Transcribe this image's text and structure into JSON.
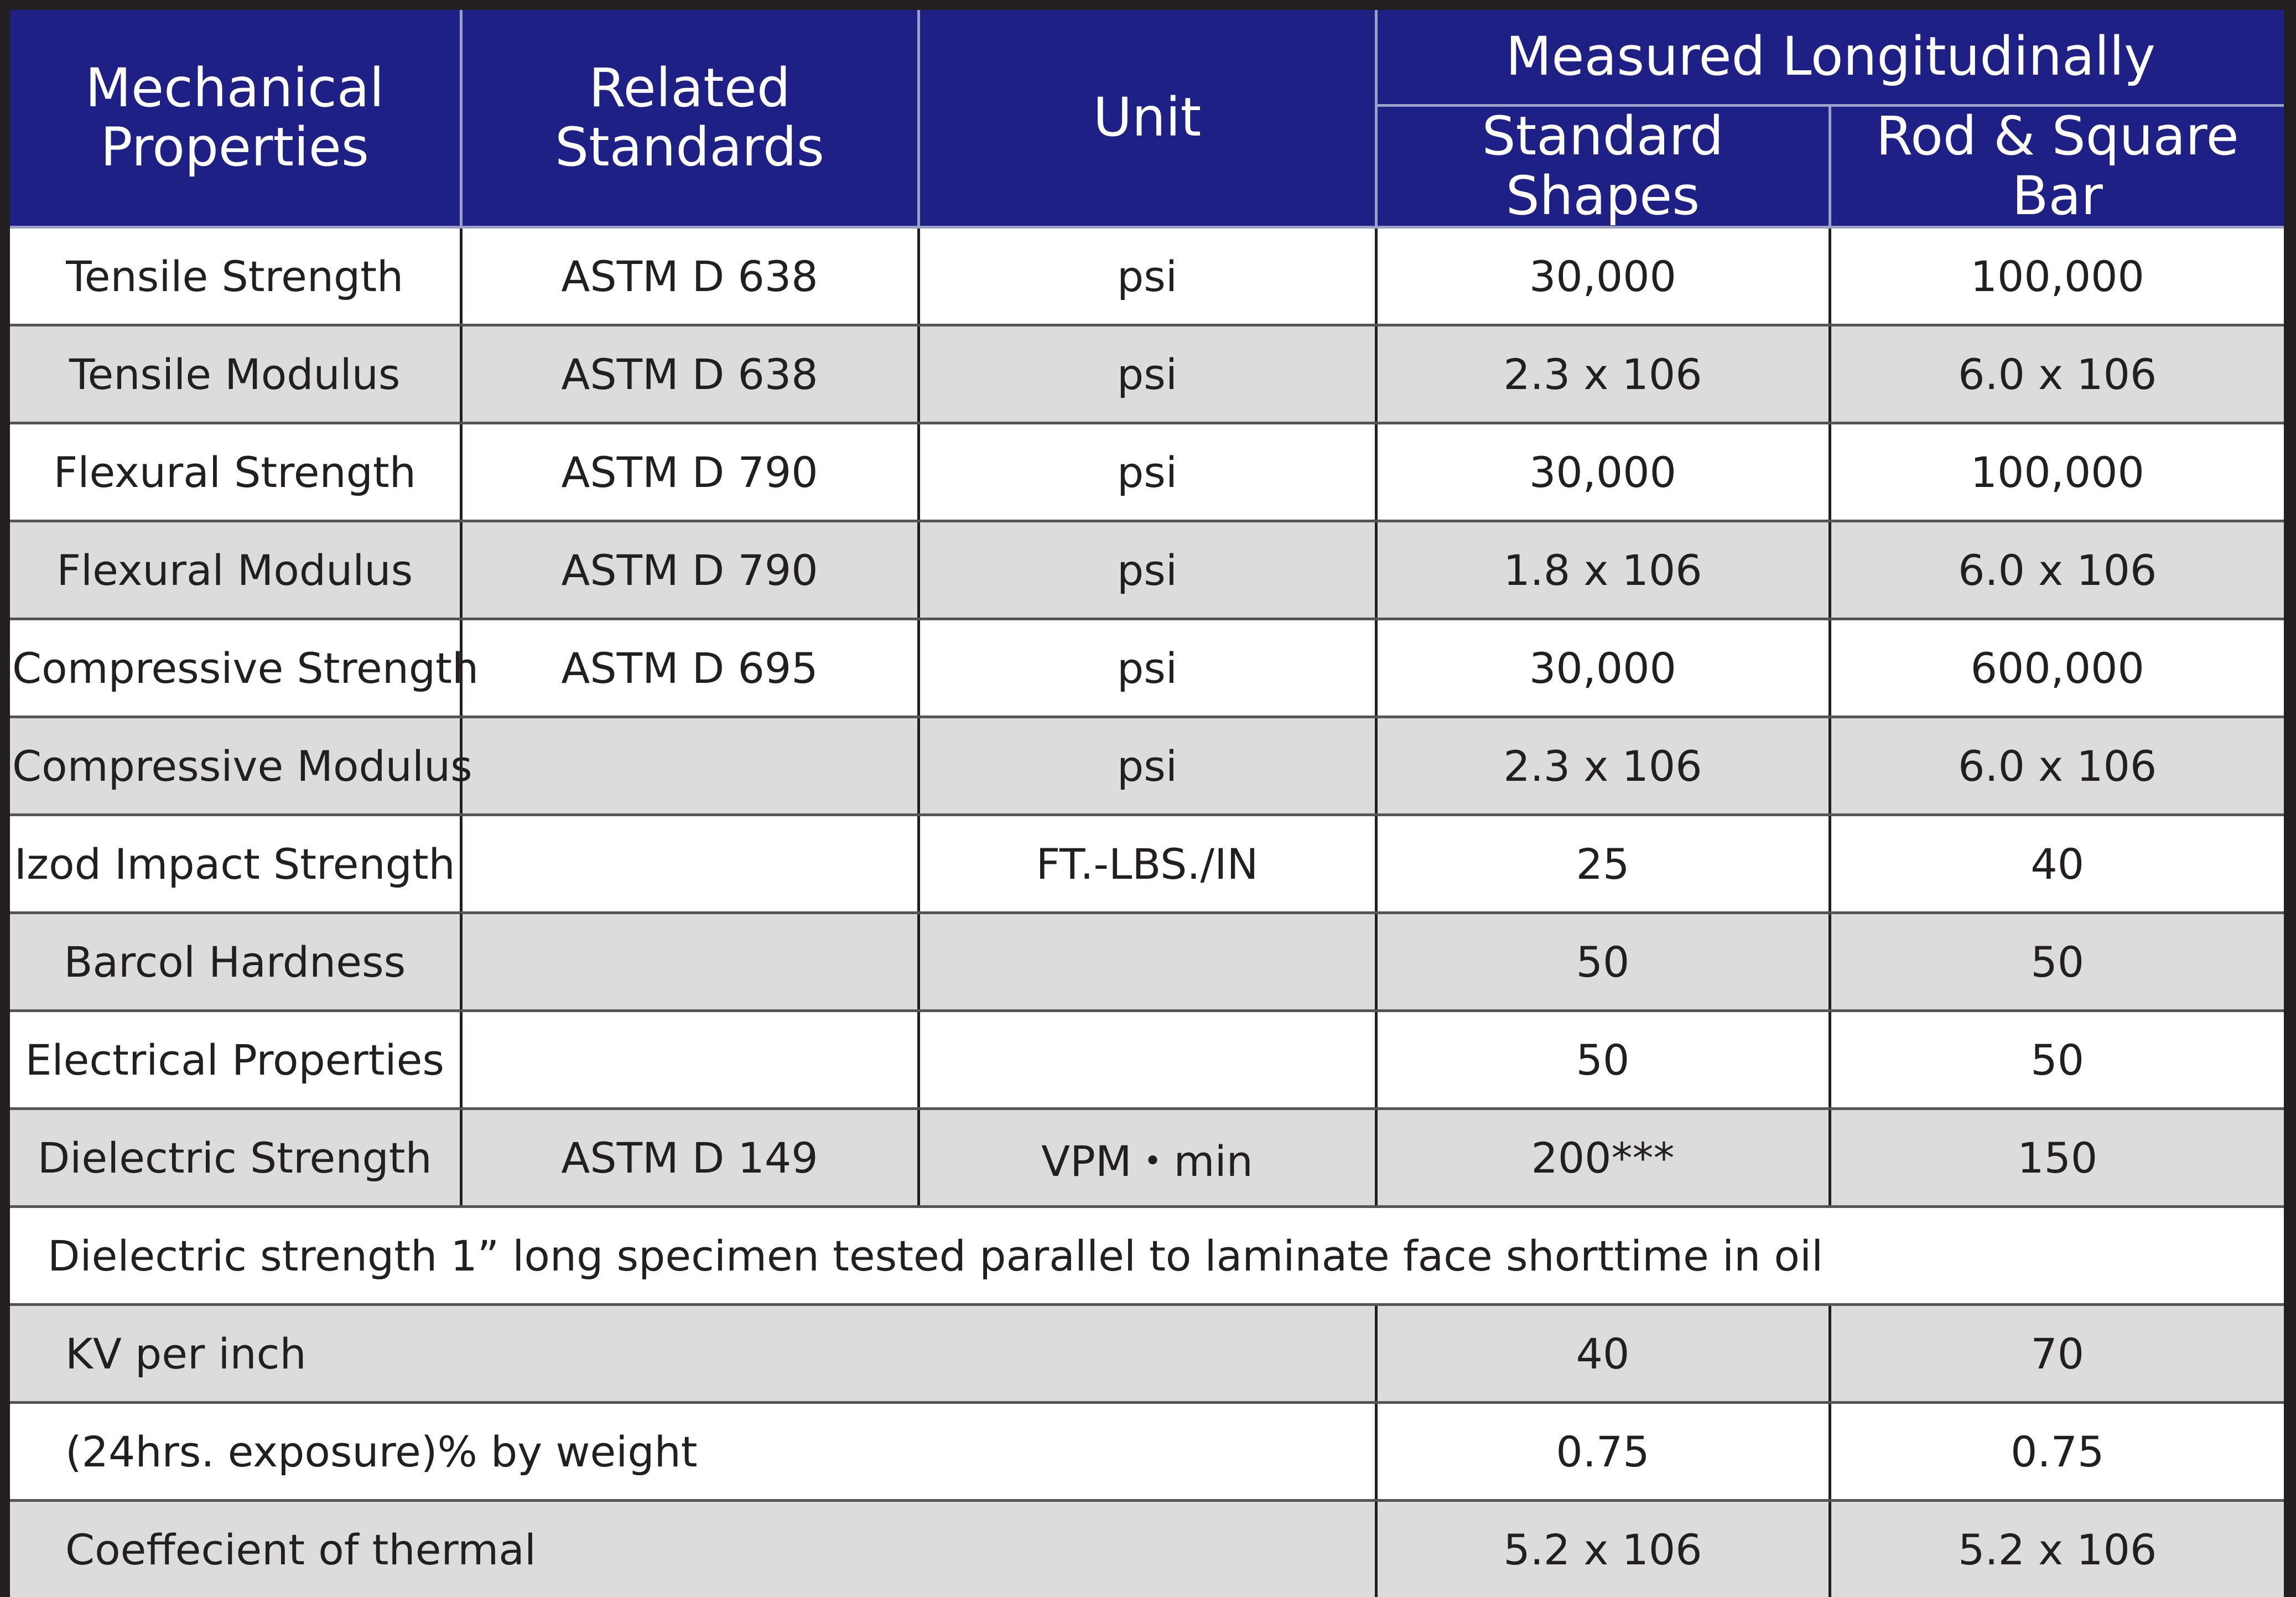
{
  "header": {
    "mechanical_properties": "Mechanical Properties",
    "related_standards": "Related Standards",
    "unit": "Unit",
    "measured_longitudinally": "Measured Longitudinally",
    "standard_shapes": "Standard Shapes",
    "rod_square_bar": "Rod & Square Bar"
  },
  "rows": [
    {
      "property": "Tensile Strength",
      "standard": "ASTM D 638",
      "unit": "psi",
      "standard_shapes": "30,000",
      "rod_square_bar": "100,000"
    },
    {
      "property": "Tensile Modulus",
      "standard": "ASTM D 638",
      "unit": "psi",
      "standard_shapes": "2.3 x 106",
      "rod_square_bar": "6.0 x 106"
    },
    {
      "property": "Flexural Strength",
      "standard": "ASTM D 790",
      "unit": "psi",
      "standard_shapes": "30,000",
      "rod_square_bar": "100,000"
    },
    {
      "property": "Flexural Modulus",
      "standard": "ASTM D 790",
      "unit": "psi",
      "standard_shapes": "1.8 x 106",
      "rod_square_bar": "6.0 x 106"
    },
    {
      "property": "Compressive Strength",
      "standard": "ASTM D 695",
      "unit": "psi",
      "standard_shapes": "30,000",
      "rod_square_bar": "600,000"
    },
    {
      "property": "Compressive Modulus",
      "standard": "",
      "unit": "psi",
      "standard_shapes": "2.3 x 106",
      "rod_square_bar": "6.0 x 106"
    },
    {
      "property": "Izod Impact Strength",
      "standard": "",
      "unit": "FT.-LBS./IN",
      "standard_shapes": "25",
      "rod_square_bar": "40"
    },
    {
      "property": "Barcol Hardness",
      "standard": "",
      "unit": "",
      "standard_shapes": "50",
      "rod_square_bar": "50"
    },
    {
      "property": "Electrical Properties",
      "standard": "",
      "unit": "",
      "standard_shapes": "50",
      "rod_square_bar": "50"
    },
    {
      "property": "Dielectric Strength",
      "standard": "ASTM D 149",
      "unit": "VPM・min",
      "standard_shapes": "200***",
      "rod_square_bar": "150"
    }
  ],
  "note": "Dielectric strength 1” long specimen tested parallel to laminate face shorttime in oil",
  "extra_rows": [
    {
      "label": "KV per inch",
      "standard_shapes": "40",
      "rod_square_bar": "70"
    },
    {
      "label": "(24hrs. exposure)% by weight",
      "standard_shapes": "0.75",
      "rod_square_bar": "0.75"
    },
    {
      "label": "Coeffecient of thermal",
      "standard_shapes": "5.2 x 106",
      "rod_square_bar": "5.2 x 106"
    }
  ],
  "colors": {
    "header_bg": "#1e2086",
    "header_text": "#ffffff",
    "row_white": "#ffffff",
    "row_gray": "#dcdcdc",
    "frame": "#231f20"
  }
}
